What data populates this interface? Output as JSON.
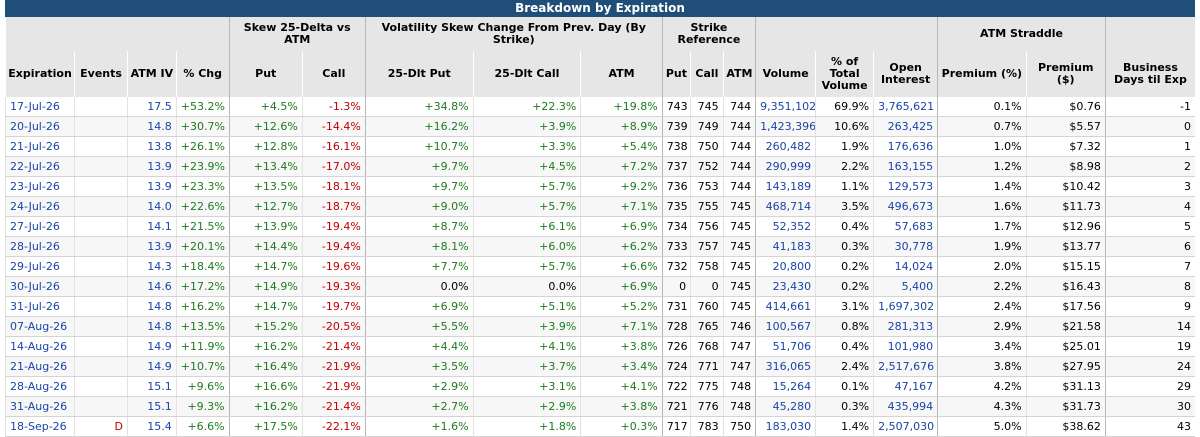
{
  "title": "Breakdown by Expiration",
  "group_headers": {
    "skew": "Skew 25-Delta vs ATM",
    "vol_change": "Volatility Skew Change From Prev. Day (By Strike)",
    "strike_ref": "Strike Reference",
    "atm_straddle": "ATM Straddle"
  },
  "columns": {
    "expiration": "Expiration",
    "events": "Events",
    "atm_iv": "ATM IV",
    "pct_chg": "% Chg",
    "put": "Put",
    "call": "Call",
    "dlt_put": "25-Dlt Put",
    "dlt_call": "25-Dlt Call",
    "atm": "ATM",
    "ref_put": "Put",
    "ref_call": "Call",
    "ref_atm": "ATM",
    "volume": "Volume",
    "pct_total_volume": "% of Total Volume",
    "open_interest": "Open Interest",
    "premium_pct": "Premium (%)",
    "premium_usd": "Premium ($)",
    "bdays": "Business Days til Exp"
  },
  "rows": [
    {
      "exp": "17-Jul-26",
      "ev": "",
      "iv": "17.5",
      "chg": "+53.2%",
      "put": "+4.5%",
      "call": "-1.3%",
      "dput": "+34.8%",
      "dcall": "+22.3%",
      "datm": "+19.8%",
      "rput": "743",
      "rcall": "745",
      "ratm": "744",
      "vol": "9,351,102",
      "pvol": "69.9%",
      "oi": "3,765,621",
      "prem": "0.1%",
      "premd": "$0.76",
      "bd": "-1"
    },
    {
      "exp": "20-Jul-26",
      "ev": "",
      "iv": "14.8",
      "chg": "+30.7%",
      "put": "+12.6%",
      "call": "-14.4%",
      "dput": "+16.2%",
      "dcall": "+3.9%",
      "datm": "+8.9%",
      "rput": "739",
      "rcall": "749",
      "ratm": "744",
      "vol": "1,423,396",
      "pvol": "10.6%",
      "oi": "263,425",
      "prem": "0.7%",
      "premd": "$5.57",
      "bd": "0"
    },
    {
      "exp": "21-Jul-26",
      "ev": "",
      "iv": "13.8",
      "chg": "+26.1%",
      "put": "+12.8%",
      "call": "-16.1%",
      "dput": "+10.7%",
      "dcall": "+3.3%",
      "datm": "+5.4%",
      "rput": "738",
      "rcall": "750",
      "ratm": "744",
      "vol": "260,482",
      "pvol": "1.9%",
      "oi": "176,636",
      "prem": "1.0%",
      "premd": "$7.32",
      "bd": "1"
    },
    {
      "exp": "22-Jul-26",
      "ev": "",
      "iv": "13.9",
      "chg": "+23.9%",
      "put": "+13.4%",
      "call": "-17.0%",
      "dput": "+9.7%",
      "dcall": "+4.5%",
      "datm": "+7.2%",
      "rput": "737",
      "rcall": "752",
      "ratm": "744",
      "vol": "290,999",
      "pvol": "2.2%",
      "oi": "163,155",
      "prem": "1.2%",
      "premd": "$8.98",
      "bd": "2"
    },
    {
      "exp": "23-Jul-26",
      "ev": "",
      "iv": "13.9",
      "chg": "+23.3%",
      "put": "+13.5%",
      "call": "-18.1%",
      "dput": "+9.7%",
      "dcall": "+5.7%",
      "datm": "+9.2%",
      "rput": "736",
      "rcall": "753",
      "ratm": "744",
      "vol": "143,189",
      "pvol": "1.1%",
      "oi": "129,573",
      "prem": "1.4%",
      "premd": "$10.42",
      "bd": "3"
    },
    {
      "exp": "24-Jul-26",
      "ev": "",
      "iv": "14.0",
      "chg": "+22.6%",
      "put": "+12.7%",
      "call": "-18.7%",
      "dput": "+9.0%",
      "dcall": "+5.7%",
      "datm": "+7.1%",
      "rput": "735",
      "rcall": "755",
      "ratm": "745",
      "vol": "468,714",
      "pvol": "3.5%",
      "oi": "496,673",
      "prem": "1.6%",
      "premd": "$11.73",
      "bd": "4"
    },
    {
      "exp": "27-Jul-26",
      "ev": "",
      "iv": "14.1",
      "chg": "+21.5%",
      "put": "+13.9%",
      "call": "-19.4%",
      "dput": "+8.7%",
      "dcall": "+6.1%",
      "datm": "+6.9%",
      "rput": "734",
      "rcall": "756",
      "ratm": "745",
      "vol": "52,352",
      "pvol": "0.4%",
      "oi": "57,683",
      "prem": "1.7%",
      "premd": "$12.96",
      "bd": "5"
    },
    {
      "exp": "28-Jul-26",
      "ev": "",
      "iv": "13.9",
      "chg": "+20.1%",
      "put": "+14.4%",
      "call": "-19.4%",
      "dput": "+8.1%",
      "dcall": "+6.0%",
      "datm": "+6.2%",
      "rput": "733",
      "rcall": "757",
      "ratm": "745",
      "vol": "41,183",
      "pvol": "0.3%",
      "oi": "30,778",
      "prem": "1.9%",
      "premd": "$13.77",
      "bd": "6"
    },
    {
      "exp": "29-Jul-26",
      "ev": "",
      "iv": "14.3",
      "chg": "+18.4%",
      "put": "+14.7%",
      "call": "-19.6%",
      "dput": "+7.7%",
      "dcall": "+5.7%",
      "datm": "+6.6%",
      "rput": "732",
      "rcall": "758",
      "ratm": "745",
      "vol": "20,800",
      "pvol": "0.2%",
      "oi": "14,024",
      "prem": "2.0%",
      "premd": "$15.15",
      "bd": "7"
    },
    {
      "exp": "30-Jul-26",
      "ev": "",
      "iv": "14.6",
      "chg": "+17.2%",
      "put": "+14.9%",
      "call": "-19.3%",
      "dput": "0.0%",
      "dcall": "0.0%",
      "datm": "+6.9%",
      "rput": "0",
      "rcall": "0",
      "ratm": "745",
      "vol": "23,430",
      "pvol": "0.2%",
      "oi": "5,400",
      "prem": "2.2%",
      "premd": "$16.43",
      "bd": "8"
    },
    {
      "exp": "31-Jul-26",
      "ev": "",
      "iv": "14.8",
      "chg": "+16.2%",
      "put": "+14.7%",
      "call": "-19.7%",
      "dput": "+6.9%",
      "dcall": "+5.1%",
      "datm": "+5.2%",
      "rput": "731",
      "rcall": "760",
      "ratm": "745",
      "vol": "414,661",
      "pvol": "3.1%",
      "oi": "1,697,302",
      "prem": "2.4%",
      "premd": "$17.56",
      "bd": "9"
    },
    {
      "exp": "07-Aug-26",
      "ev": "",
      "iv": "14.8",
      "chg": "+13.5%",
      "put": "+15.2%",
      "call": "-20.5%",
      "dput": "+5.5%",
      "dcall": "+3.9%",
      "datm": "+7.1%",
      "rput": "728",
      "rcall": "765",
      "ratm": "746",
      "vol": "100,567",
      "pvol": "0.8%",
      "oi": "281,313",
      "prem": "2.9%",
      "premd": "$21.58",
      "bd": "14"
    },
    {
      "exp": "14-Aug-26",
      "ev": "",
      "iv": "14.9",
      "chg": "+11.9%",
      "put": "+16.2%",
      "call": "-21.4%",
      "dput": "+4.4%",
      "dcall": "+4.1%",
      "datm": "+3.8%",
      "rput": "726",
      "rcall": "768",
      "ratm": "747",
      "vol": "51,706",
      "pvol": "0.4%",
      "oi": "101,980",
      "prem": "3.4%",
      "premd": "$25.01",
      "bd": "19"
    },
    {
      "exp": "21-Aug-26",
      "ev": "",
      "iv": "14.9",
      "chg": "+10.7%",
      "put": "+16.4%",
      "call": "-21.9%",
      "dput": "+3.5%",
      "dcall": "+3.7%",
      "datm": "+3.4%",
      "rput": "724",
      "rcall": "771",
      "ratm": "747",
      "vol": "316,065",
      "pvol": "2.4%",
      "oi": "2,517,676",
      "prem": "3.8%",
      "premd": "$27.95",
      "bd": "24"
    },
    {
      "exp": "28-Aug-26",
      "ev": "",
      "iv": "15.1",
      "chg": "+9.6%",
      "put": "+16.6%",
      "call": "-21.9%",
      "dput": "+2.9%",
      "dcall": "+3.1%",
      "datm": "+4.1%",
      "rput": "722",
      "rcall": "775",
      "ratm": "748",
      "vol": "15,264",
      "pvol": "0.1%",
      "oi": "47,167",
      "prem": "4.2%",
      "premd": "$31.13",
      "bd": "29"
    },
    {
      "exp": "31-Aug-26",
      "ev": "",
      "iv": "15.1",
      "chg": "+9.3%",
      "put": "+16.2%",
      "call": "-21.4%",
      "dput": "+2.7%",
      "dcall": "+2.9%",
      "datm": "+3.8%",
      "rput": "721",
      "rcall": "776",
      "ratm": "748",
      "vol": "45,280",
      "pvol": "0.3%",
      "oi": "435,994",
      "prem": "4.3%",
      "premd": "$31.73",
      "bd": "30"
    },
    {
      "exp": "18-Sep-26",
      "ev": "D",
      "iv": "15.4",
      "chg": "+6.6%",
      "put": "+17.5%",
      "call": "-22.1%",
      "dput": "+1.6%",
      "dcall": "+1.8%",
      "datm": "+0.3%",
      "rput": "717",
      "rcall": "783",
      "ratm": "750",
      "vol": "183,030",
      "pvol": "1.4%",
      "oi": "2,507,030",
      "prem": "5.0%",
      "premd": "$38.62",
      "bd": "43"
    }
  ]
}
